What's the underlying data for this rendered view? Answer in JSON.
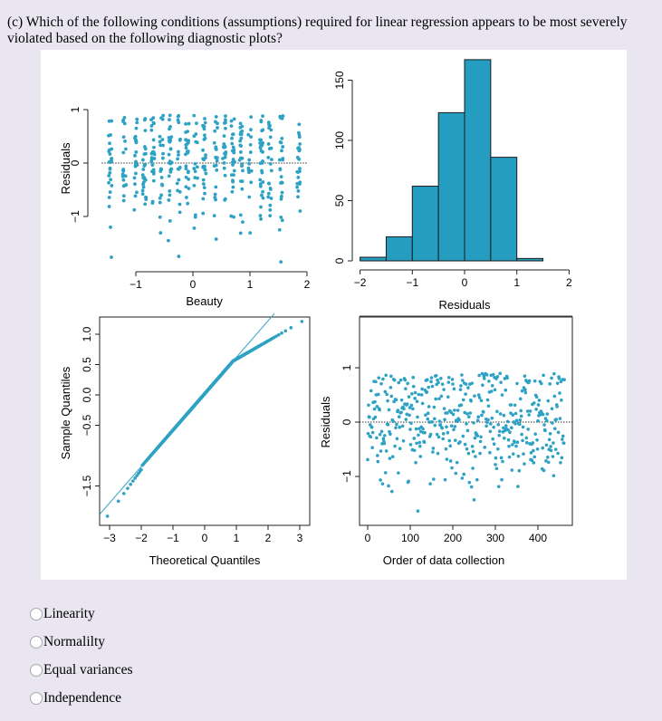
{
  "question": {
    "text": "(c) Which of the following conditions (assumptions) required for linear regression appears to be most severely violated based on the following diagnostic plots?"
  },
  "options": [
    {
      "label": "Linearity",
      "selected": false
    },
    {
      "label": "Normalilty",
      "selected": false
    },
    {
      "label": "Equal variances",
      "selected": false
    },
    {
      "label": "Independence",
      "selected": false
    }
  ],
  "colors": {
    "points": "#2ea2c4",
    "bars": "#249dc0",
    "background": "#e9e6f1"
  },
  "chart_data": [
    {
      "type": "scatter",
      "title": "",
      "xlabel": "Beauty",
      "ylabel": "Residuals",
      "xticks": [
        "−1",
        "0",
        "1",
        "2"
      ],
      "yticks": [
        "−1",
        "0",
        "1"
      ],
      "xlim": [
        -1.6,
        2.0
      ],
      "ylim": [
        -1.9,
        1.1
      ],
      "reference_line_y": 0,
      "n": 463,
      "x_distinct_values": [
        -1.45,
        -1.2,
        -1.0,
        -0.85,
        -0.7,
        -0.55,
        -0.4,
        -0.25,
        -0.1,
        0.05,
        0.2,
        0.4,
        0.55,
        0.7,
        0.85,
        1.0,
        1.2,
        1.35,
        1.55,
        1.85
      ]
    },
    {
      "type": "bar",
      "title": "",
      "xlabel": "Residuals",
      "ylabel": "",
      "bins": [
        [
          -2,
          -1.5
        ],
        [
          -1.5,
          -1
        ],
        [
          -1,
          -0.5
        ],
        [
          -0.5,
          0
        ],
        [
          0,
          0.5
        ],
        [
          0.5,
          1
        ],
        [
          1,
          1.5
        ]
      ],
      "values": [
        3,
        20,
        62,
        123,
        167,
        86,
        2
      ],
      "xticks": [
        "−2",
        "−1",
        "0",
        "1",
        "2"
      ],
      "yticks": [
        "0",
        "50",
        "100",
        "150"
      ],
      "xlim": [
        -2,
        2
      ],
      "ylim": [
        0,
        167
      ]
    },
    {
      "type": "scatter",
      "title": "",
      "xlabel": "Theoretical Quantiles",
      "ylabel": "Sample Quantiles",
      "xticks": [
        "−3",
        "−2",
        "−1",
        "0",
        "1",
        "2",
        "3"
      ],
      "yticks": [
        "−1.5",
        "−0.5",
        "0.0",
        "0.5",
        "1.0"
      ],
      "xlim": [
        -3,
        3
      ],
      "ylim": [
        -1.9,
        1.15
      ],
      "reference_line": {
        "slope": 0.6,
        "intercept": 0.02
      },
      "n": 463
    },
    {
      "type": "scatter",
      "title": "",
      "xlabel": "Order of data collection",
      "ylabel": "Residuals",
      "xticks": [
        "0",
        "100",
        "200",
        "300",
        "400"
      ],
      "yticks": [
        "−1",
        "0",
        "1"
      ],
      "xlim": [
        0,
        463
      ],
      "ylim": [
        -1.9,
        1.1
      ],
      "reference_line_y": 0,
      "n": 463
    }
  ]
}
